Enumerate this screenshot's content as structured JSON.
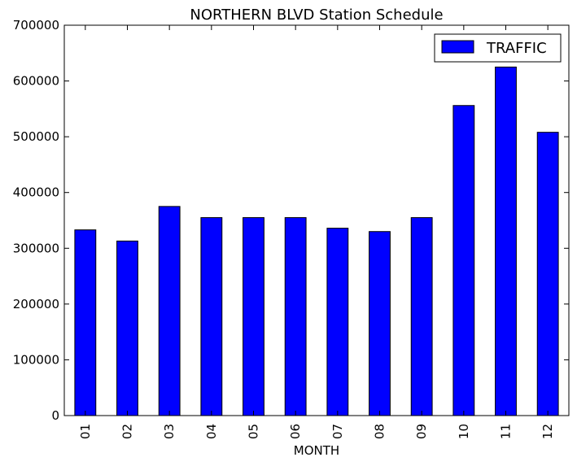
{
  "chart_data": {
    "type": "bar",
    "title": "NORTHERN BLVD Station Schedule",
    "xlabel": "MONTH",
    "ylabel": "",
    "categories": [
      "01",
      "02",
      "03",
      "04",
      "05",
      "06",
      "07",
      "08",
      "09",
      "10",
      "11",
      "12"
    ],
    "series": [
      {
        "name": "TRAFFIC",
        "color": "#0000ff",
        "values": [
          333000,
          313000,
          375000,
          355000,
          355000,
          355000,
          336000,
          330000,
          355000,
          556000,
          625000,
          508000
        ]
      }
    ],
    "ylim": [
      0,
      700000
    ],
    "yticks": [
      "0",
      "100000",
      "200000",
      "300000",
      "400000",
      "500000",
      "600000",
      "700000"
    ],
    "grid": false,
    "legend": "top-right",
    "bar_edge_color": "#000000"
  }
}
